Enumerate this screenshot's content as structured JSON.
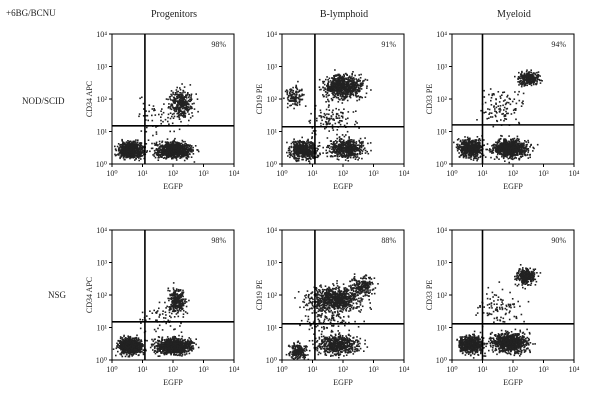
{
  "treatment_label": "+6BG/BCNU",
  "rows": [
    "NOD/SCID",
    "NSG"
  ],
  "columns": [
    "Progenitors",
    "B-lymphoid",
    "Myeloid"
  ],
  "colors": {
    "dots": "#222222",
    "gate": "#000000",
    "axis": "#000000"
  },
  "chart_data": [
    {
      "type": "scatter",
      "strain": "NOD/SCID",
      "panel": "Progenitors",
      "xlabel": "EGFP",
      "ylabel": "CD34 APC",
      "xscale": "log",
      "yscale": "log",
      "xlim": [
        1,
        10000
      ],
      "ylim": [
        1,
        10000
      ],
      "xticks": [
        "10⁰",
        "10¹",
        "10²",
        "10³",
        "10⁴"
      ],
      "yticks": [
        "10⁰",
        "10¹",
        "10²",
        "10³",
        "10⁴"
      ],
      "gate": {
        "x": 12,
        "y": 15
      },
      "annotation": "98%"
    },
    {
      "type": "scatter",
      "strain": "NOD/SCID",
      "panel": "B-lymphoid",
      "xlabel": "EGFP",
      "ylabel": "CD19 PE",
      "xscale": "log",
      "yscale": "log",
      "xlim": [
        1,
        10000
      ],
      "ylim": [
        1,
        10000
      ],
      "xticks": [
        "10⁰",
        "10¹",
        "10²",
        "10³",
        "10⁴"
      ],
      "yticks": [
        "10⁰",
        "10¹",
        "10²",
        "10³",
        "10⁴"
      ],
      "gate": {
        "x": 12,
        "y": 14
      },
      "annotation": "91%"
    },
    {
      "type": "scatter",
      "strain": "NOD/SCID",
      "panel": "Myeloid",
      "xlabel": "EGFP",
      "ylabel": "CD33 PE",
      "xscale": "log",
      "yscale": "log",
      "xlim": [
        1,
        10000
      ],
      "ylim": [
        1,
        10000
      ],
      "xticks": [
        "10⁰",
        "10¹",
        "10²",
        "10³",
        "10⁴"
      ],
      "yticks": [
        "10⁰",
        "10¹",
        "10²",
        "10³",
        "10⁴"
      ],
      "gate": {
        "x": 10,
        "y": 16
      },
      "annotation": "94%"
    },
    {
      "type": "scatter",
      "strain": "NSG",
      "panel": "Progenitors",
      "xlabel": "EGFP",
      "ylabel": "CD34 APC",
      "xscale": "log",
      "yscale": "log",
      "xlim": [
        1,
        10000
      ],
      "ylim": [
        1,
        10000
      ],
      "xticks": [
        "10⁰",
        "10¹",
        "10²",
        "10³",
        "10⁴"
      ],
      "yticks": [
        "10⁰",
        "10¹",
        "10²",
        "10³",
        "10⁴"
      ],
      "gate": {
        "x": 12,
        "y": 15
      },
      "annotation": "98%"
    },
    {
      "type": "scatter",
      "strain": "NSG",
      "panel": "B-lymphoid",
      "xlabel": "EGFP",
      "ylabel": "CD19 PE",
      "xscale": "log",
      "yscale": "log",
      "xlim": [
        1,
        10000
      ],
      "ylim": [
        1,
        10000
      ],
      "xticks": [
        "10⁰",
        "10¹",
        "10²",
        "10³",
        "10⁴"
      ],
      "yticks": [
        "10⁰",
        "10¹",
        "10²",
        "10³",
        "10⁴"
      ],
      "gate": {
        "x": 12,
        "y": 13
      },
      "annotation": "88%"
    },
    {
      "type": "scatter",
      "strain": "NSG",
      "panel": "Myeloid",
      "xlabel": "EGFP",
      "ylabel": "CD33 PE",
      "xscale": "log",
      "yscale": "log",
      "xlim": [
        1,
        10000
      ],
      "ylim": [
        1,
        10000
      ],
      "xticks": [
        "10⁰",
        "10¹",
        "10²",
        "10³",
        "10⁴"
      ],
      "yticks": [
        "10⁰",
        "10¹",
        "10²",
        "10³",
        "10⁴"
      ],
      "gate": {
        "x": 10,
        "y": 13
      },
      "annotation": "90%"
    }
  ]
}
